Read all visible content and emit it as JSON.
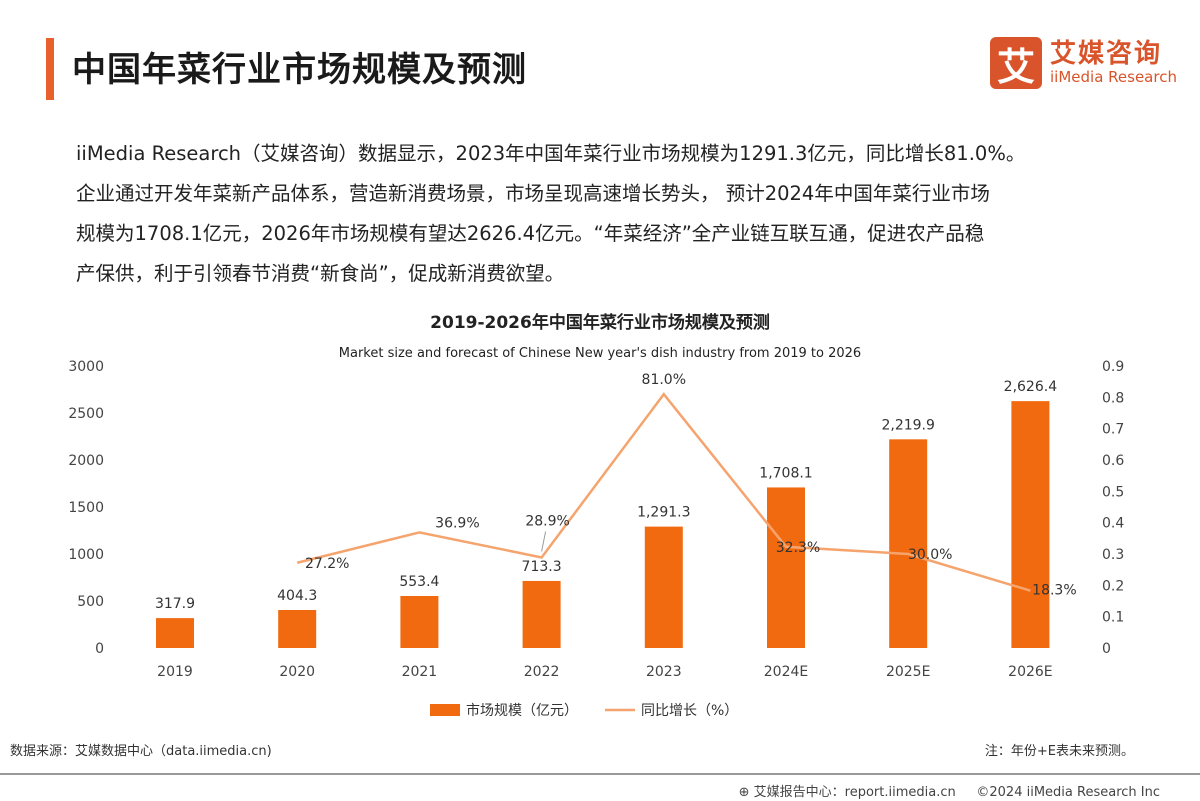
{
  "header": {
    "title": "中国年菜行业市场规模及预测",
    "logo_cn": "艾媒咨询",
    "logo_en": "iiMedia Research",
    "logo_mark": "艾"
  },
  "paragraph": [
    "iiMedia Research（艾媒咨询）数据显示，2023年中国年菜行业市场规模为1291.3亿元，同比增长81.0%。",
    "企业通过开发年菜新产品体系，营造新消费场景，市场呈现高速增长势头， 预计2024年中国年菜行业市场",
    "规模为1708.1亿元，2026年市场规模有望达2626.4亿元。“年菜经济”全产业链互联互通，促进农产品稳",
    "产保供，利于引领春节消费“新食尚”，促成新消费欲望。"
  ],
  "chart_data": {
    "type": "bar+line",
    "title": "2019-2026年中国年菜行业市场规模及预测",
    "subtitle": "Market size and forecast of Chinese New year's dish industry from 2019 to 2026",
    "categories": [
      "2019",
      "2020",
      "2021",
      "2022",
      "2023",
      "2024E",
      "2025E",
      "2026E"
    ],
    "series": [
      {
        "name": "市场规模（亿元）",
        "type": "bar",
        "axis": "left",
        "color": "#f26a10",
        "values": [
          317.9,
          404.3,
          553.4,
          713.3,
          1291.3,
          1708.1,
          2219.9,
          2626.4
        ],
        "labels": [
          "317.9",
          "404.3",
          "553.4",
          "713.3",
          "1,291.3",
          "1,708.1",
          "2,219.9",
          "2,626.4"
        ]
      },
      {
        "name": "同比增长（%）",
        "type": "line",
        "axis": "right",
        "color": "#f5a46e",
        "values": [
          null,
          0.272,
          0.369,
          0.289,
          0.81,
          0.323,
          0.3,
          0.183
        ],
        "labels": [
          "",
          "27.2%",
          "36.9%",
          "28.9%",
          "81.0%",
          "32.3%",
          "30.0%",
          "18.3%"
        ]
      }
    ],
    "y_left": {
      "range": [
        0,
        3000
      ],
      "ticks": [
        "0",
        "500",
        "1000",
        "1500",
        "2000",
        "2500",
        "3000"
      ]
    },
    "y_right": {
      "range": [
        0,
        0.9
      ],
      "ticks": [
        "0",
        "0.1",
        "0.2",
        "0.3",
        "0.4",
        "0.5",
        "0.6",
        "0.7",
        "0.8",
        "0.9"
      ]
    },
    "grid": false,
    "legend": "bottom"
  },
  "footer": {
    "source": "数据来源：艾媒数据中心（data.iimedia.cn)",
    "note": "注：年份+E表未来预测。",
    "report": "艾媒报告中心：report.iimedia.cn",
    "copyright": "©2024  iiMedia Research  Inc"
  }
}
